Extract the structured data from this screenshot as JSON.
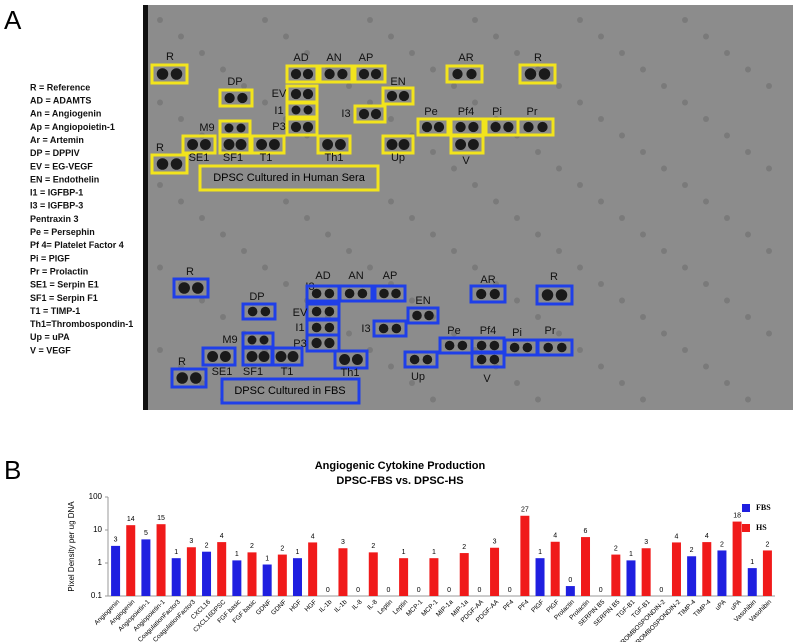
{
  "panel_a": {
    "label": "A",
    "legend": [
      "R = Reference",
      "AD = ADAMTS",
      "An = Angiogenin",
      " Ap = Angiopoietin-1",
      "Ar = Artemin",
      "DP = DPPIV",
      "EV = EG-VEGF",
      "EN = Endothelin",
      "I1 = IGFBP-1",
      "I3 = IGFBP-3",
      "Pentraxin 3",
      "Pe = Persephin",
      "Pf 4= Platelet Factor 4",
      "Pi = PlGF",
      "Pr = Prolactin",
      "SE1 = Serpin E1",
      " SF1 = Serpin F1",
      "T1 = TIMP-1",
      "Th1=Thrombospondin-1",
      "Up = uPA",
      "V = VEGF"
    ],
    "top": {
      "caption": "DPSC Cultured in Human Sera",
      "spots": [
        "R",
        "AD",
        "AN",
        "AP",
        "AR",
        "R",
        "DP",
        "EV",
        "EN",
        "I1",
        "I3",
        "Pe",
        "Pf4",
        "Pi",
        "Pr",
        "M9",
        "P3",
        "SE1",
        "SF1",
        "T1",
        "Th1",
        "Up",
        "V",
        "R"
      ]
    },
    "bottom": {
      "caption": "DPSC Cultured in FBS",
      "spots": [
        "R",
        "I3",
        "AD",
        "AN",
        "AP",
        "AR",
        "R",
        "DP",
        "EN",
        "EV",
        "I1",
        "I3",
        "Pe",
        "Pf4",
        "Pi",
        "Pr",
        "M9",
        "P3",
        "SE1",
        "SF1",
        "T1",
        "Th1",
        "Up",
        "V",
        "R"
      ]
    }
  },
  "panel_b_label": "B",
  "chart_data": {
    "type": "bar",
    "title": "Angiogenic Cytokine Production",
    "subtitle": "DPSC-FBS vs. DPSC-HS",
    "y_label": "Pixel Density per ug DNA",
    "log_scale": true,
    "ylim": [
      0.1,
      100
    ],
    "yticks": [
      0.1,
      1,
      10,
      100
    ],
    "grid": false,
    "legend": "top-right",
    "categories": [
      "Angiogenin",
      "Angiogenin",
      "Angiopoietin-1",
      "Angiopoietin-1",
      "CoagulationFactor3",
      "CoagulationFactor3",
      "CXCL16",
      "CXCL16DPSC",
      "FGF basic",
      "FGF basic",
      "GDNF",
      "GDNF",
      "HGF",
      "HGF",
      "IL-1b",
      "IL-1b",
      "IL-8",
      "IL-8",
      "Leptin",
      "Leptin",
      "MCP-1",
      "MCP-1",
      "MIP-1a",
      "MIP-1a",
      "PDGF-AA",
      "PDGF-AA",
      "PF4",
      "PF4",
      "PlGF",
      "PlGF",
      "Prolactin",
      "Prolactin",
      "SERPIN B5",
      "SERPIN B5",
      "TGF-B1",
      "TGF-B1",
      "THROMBOSPONDIN-2",
      "THROMBOSPONDIN-2",
      "TIMP-4",
      "TIMP-4",
      "uPA",
      "uPA",
      "Vasohibin",
      "Vasohibin"
    ],
    "series": [
      {
        "name": "FBS",
        "color": "#1f1fe0",
        "values": [
          3.3,
          null,
          5.2,
          null,
          1.4,
          null,
          2.2,
          null,
          1.2,
          null,
          0.9,
          null,
          1.4,
          null,
          0.05,
          null,
          0.05,
          null,
          0.05,
          null,
          0.05,
          null,
          0.05,
          null,
          0.05,
          null,
          0.05,
          null,
          1.4,
          null,
          0.2,
          null,
          0.05,
          null,
          1.2,
          null,
          0.05,
          null,
          1.6,
          null,
          2.4,
          null,
          0.7,
          null
        ],
        "value_labels": [
          "3",
          null,
          "5",
          null,
          "1",
          null,
          "2",
          null,
          "1",
          null,
          "1",
          null,
          "1",
          null,
          "0",
          null,
          "0",
          null,
          "0",
          null,
          "0",
          null,
          "0",
          null,
          "0",
          null,
          "0",
          null,
          "1",
          null,
          "0",
          null,
          "0",
          null,
          "1",
          null,
          "0",
          null,
          "2",
          null,
          "2",
          null,
          "1",
          null
        ]
      },
      {
        "name": "HS",
        "color": "#f01a1a",
        "values": [
          null,
          14,
          null,
          15,
          null,
          3,
          null,
          4.3,
          null,
          2.1,
          null,
          1.8,
          null,
          4.2,
          null,
          2.8,
          null,
          2.1,
          null,
          1.4,
          null,
          1.4,
          null,
          2.0,
          null,
          2.9,
          null,
          27,
          null,
          4.4,
          null,
          6.1,
          null,
          1.8,
          null,
          2.8,
          null,
          4.2,
          null,
          4.3,
          null,
          18,
          null,
          2.4
        ],
        "value_labels": [
          null,
          "14",
          null,
          "15",
          null,
          "3",
          null,
          "4",
          null,
          "2",
          null,
          "2",
          null,
          "4",
          null,
          "3",
          null,
          "2",
          null,
          "1",
          null,
          "1",
          null,
          "2",
          null,
          "3",
          null,
          "27",
          null,
          "4",
          null,
          "6",
          null,
          "2",
          null,
          "3",
          null,
          "4",
          null,
          "4",
          null,
          "18",
          null,
          "2"
        ]
      }
    ]
  }
}
